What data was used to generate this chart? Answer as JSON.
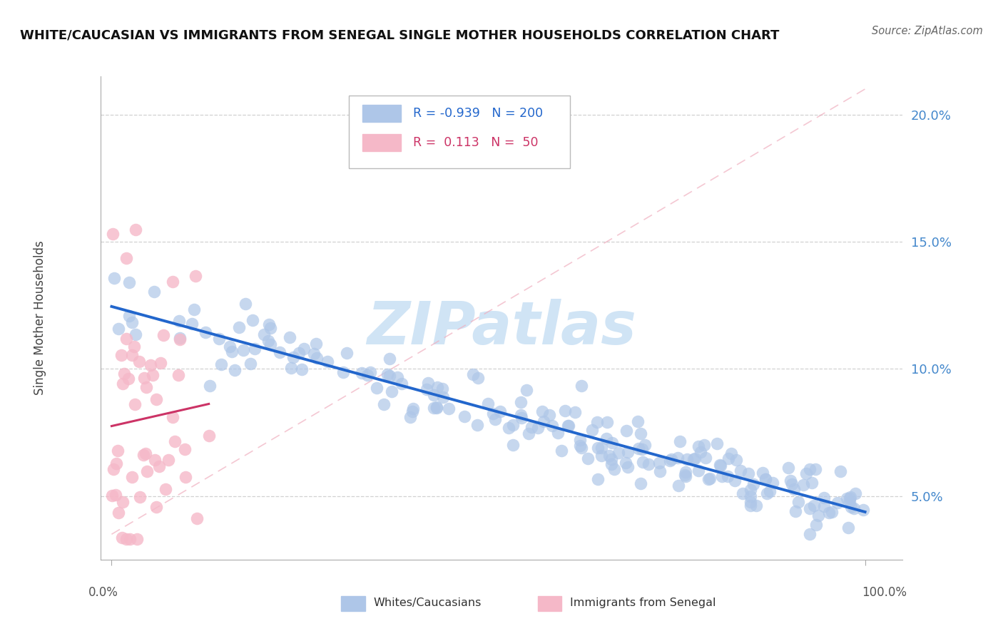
{
  "title": "WHITE/CAUCASIAN VS IMMIGRANTS FROM SENEGAL SINGLE MOTHER HOUSEHOLDS CORRELATION CHART",
  "source": "Source: ZipAtlas.com",
  "ylabel": "Single Mother Households",
  "legend_blue_R": "-0.939",
  "legend_blue_N": "200",
  "legend_pink_R": "0.113",
  "legend_pink_N": "50",
  "blue_color": "#aec6e8",
  "blue_line_color": "#2266cc",
  "pink_color": "#f5b8c8",
  "pink_line_color": "#cc3366",
  "diag_color": "#f0b0c0",
  "watermark": "ZIPatlas",
  "watermark_color": "#d0e4f5",
  "background_color": "#ffffff",
  "grid_color": "#cccccc",
  "ytick_color": "#4488cc",
  "ylim": [
    0.025,
    0.215
  ],
  "xlim": [
    -0.015,
    1.05
  ],
  "yticks": [
    0.05,
    0.1,
    0.15,
    0.2
  ],
  "ytick_labels": [
    "5.0%",
    "10.0%",
    "15.0%",
    "20.0%"
  ],
  "blue_scatter_seed": 42,
  "pink_scatter_seed": 13
}
